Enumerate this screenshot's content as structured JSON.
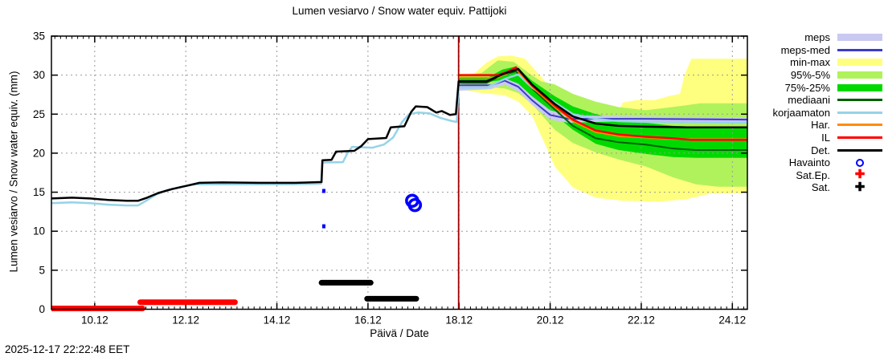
{
  "chart_data": {
    "type": "line",
    "title": "Lumen vesiarvo / Snow water equiv.  Pattijoki",
    "ylabel": "Lumen vesiarvo / Snow water equiv. (mm)",
    "xlabel": "Päivä / Date",
    "footer_timestamp": "2025-12-17 22:22:48 EET",
    "x_range": [
      9.05,
      24.33
    ],
    "y_range": [
      0,
      35
    ],
    "x_ticks": [
      {
        "value": 10,
        "label": "10.12"
      },
      {
        "value": 12,
        "label": "12.12"
      },
      {
        "value": 14,
        "label": "14.12"
      },
      {
        "value": 16,
        "label": "16.12"
      },
      {
        "value": 18,
        "label": "18.12"
      },
      {
        "value": 20,
        "label": "20.12"
      },
      {
        "value": 22,
        "label": "22.12"
      },
      {
        "value": 24,
        "label": "24.12"
      }
    ],
    "x_minor_step": 0.125,
    "y_ticks": [
      {
        "value": 0,
        "label": "0"
      },
      {
        "value": 5,
        "label": "5"
      },
      {
        "value": 10,
        "label": "10"
      },
      {
        "value": 15,
        "label": "15"
      },
      {
        "value": 20,
        "label": "20"
      },
      {
        "value": 25,
        "label": "25"
      },
      {
        "value": 30,
        "label": "30"
      },
      {
        "value": 35,
        "label": "35"
      }
    ],
    "colors": {
      "background": "#ffffff",
      "border": "#000000",
      "grid": "#9a9a9a",
      "text": "#000000"
    },
    "now_line": {
      "x": 17.99,
      "color": "#a00000"
    },
    "bands": [
      {
        "name": "min-max",
        "color": "#ffff7f",
        "upper": [
          [
            18.0,
            30.2
          ],
          [
            18.35,
            30.3
          ],
          [
            18.6,
            31.6
          ],
          [
            18.85,
            32.4
          ],
          [
            19.15,
            32.5
          ],
          [
            19.45,
            32.1
          ],
          [
            19.8,
            29.8
          ],
          [
            20.1,
            27.7
          ],
          [
            20.45,
            26.5
          ],
          [
            20.75,
            25.9
          ],
          [
            21.2,
            25.4
          ],
          [
            21.5,
            25.4
          ],
          [
            21.6,
            26.5
          ],
          [
            21.9,
            26.8
          ],
          [
            22.3,
            26.8
          ],
          [
            22.6,
            27.3
          ],
          [
            22.85,
            27.6
          ],
          [
            22.95,
            30.0
          ],
          [
            23.1,
            32.1
          ],
          [
            24.33,
            32.1
          ]
        ],
        "lower": [
          [
            18.0,
            28.2
          ],
          [
            18.5,
            27.7
          ],
          [
            19.0,
            27.4
          ],
          [
            19.3,
            26.6
          ],
          [
            19.6,
            24.8
          ],
          [
            19.9,
            21.0
          ],
          [
            20.1,
            18.3
          ],
          [
            20.5,
            15.6
          ],
          [
            21.0,
            14.3
          ],
          [
            21.6,
            13.9
          ],
          [
            22.4,
            13.8
          ],
          [
            23.0,
            14.1
          ],
          [
            23.5,
            14.8
          ],
          [
            24.33,
            14.9
          ]
        ]
      },
      {
        "name": "95%-5%",
        "color": "#b0f25c",
        "upper": [
          [
            18.0,
            29.9
          ],
          [
            18.5,
            30.3
          ],
          [
            18.85,
            31.9
          ],
          [
            19.2,
            31.7
          ],
          [
            19.5,
            30.4
          ],
          [
            19.8,
            29.2
          ],
          [
            20.1,
            28.8
          ],
          [
            20.5,
            27.6
          ],
          [
            21.0,
            26.6
          ],
          [
            21.5,
            25.9
          ],
          [
            22.1,
            25.5
          ],
          [
            22.8,
            26.0
          ],
          [
            23.3,
            26.4
          ],
          [
            24.33,
            26.4
          ]
        ],
        "lower": [
          [
            18.0,
            28.9
          ],
          [
            18.6,
            28.5
          ],
          [
            19.0,
            28.3
          ],
          [
            19.3,
            27.7
          ],
          [
            19.6,
            26.3
          ],
          [
            20.1,
            23.0
          ],
          [
            20.5,
            21.3
          ],
          [
            21.0,
            20.1
          ],
          [
            21.5,
            19.2
          ],
          [
            22.1,
            18.3
          ],
          [
            22.7,
            16.9
          ],
          [
            23.2,
            16.0
          ],
          [
            23.7,
            15.7
          ],
          [
            24.33,
            15.7
          ]
        ]
      },
      {
        "name": "75%-25%",
        "color": "#00d900",
        "upper": [
          [
            18.0,
            29.6
          ],
          [
            18.6,
            29.6
          ],
          [
            18.95,
            30.7
          ],
          [
            19.25,
            31.1
          ],
          [
            19.6,
            29.3
          ],
          [
            20.1,
            27.3
          ],
          [
            20.5,
            26.0
          ],
          [
            21.0,
            25.0
          ],
          [
            21.5,
            24.3
          ],
          [
            22.1,
            23.9
          ],
          [
            22.7,
            23.5
          ],
          [
            23.2,
            23.4
          ],
          [
            24.33,
            23.4
          ]
        ],
        "lower": [
          [
            18.0,
            29.1
          ],
          [
            18.6,
            29.1
          ],
          [
            19.0,
            29.4
          ],
          [
            19.3,
            28.4
          ],
          [
            19.6,
            26.9
          ],
          [
            20.1,
            24.9
          ],
          [
            20.5,
            23.0
          ],
          [
            21.0,
            21.2
          ],
          [
            21.5,
            20.4
          ],
          [
            22.1,
            19.9
          ],
          [
            22.7,
            19.5
          ],
          [
            23.2,
            19.4
          ],
          [
            24.33,
            19.4
          ]
        ]
      },
      {
        "name": "meps",
        "color": "#c9c9f2",
        "upper": [
          [
            18.0,
            28.6
          ],
          [
            18.7,
            28.8
          ],
          [
            19.0,
            29.6
          ],
          [
            19.3,
            28.9
          ],
          [
            19.6,
            27.3
          ],
          [
            20.0,
            25.5
          ],
          [
            20.4,
            24.9
          ],
          [
            21.0,
            24.8
          ],
          [
            22.0,
            24.7
          ],
          [
            24.33,
            24.6
          ]
        ],
        "lower": [
          [
            18.0,
            28.0
          ],
          [
            18.7,
            28.2
          ],
          [
            19.0,
            28.8
          ],
          [
            19.3,
            27.9
          ],
          [
            19.6,
            26.2
          ],
          [
            20.0,
            24.3
          ],
          [
            20.4,
            23.9
          ],
          [
            21.0,
            24.0
          ],
          [
            22.0,
            24.1
          ],
          [
            24.33,
            24.0
          ]
        ]
      }
    ],
    "lines": [
      {
        "name": "meps-med",
        "color": "#3b3bc8",
        "width": 2,
        "points": [
          [
            18.0,
            28.7
          ],
          [
            18.7,
            28.7
          ],
          [
            19.0,
            29.3
          ],
          [
            19.3,
            28.5
          ],
          [
            19.6,
            26.8
          ],
          [
            20.0,
            24.9
          ],
          [
            20.4,
            24.4
          ],
          [
            21.0,
            24.4
          ],
          [
            22.0,
            24.4
          ],
          [
            24.33,
            24.3
          ]
        ]
      },
      {
        "name": "mediaani",
        "color": "#005f00",
        "width": 2,
        "points": [
          [
            18.0,
            29.0
          ],
          [
            18.6,
            29.0
          ],
          [
            18.95,
            30.0
          ],
          [
            19.25,
            30.5
          ],
          [
            19.6,
            28.3
          ],
          [
            20.1,
            25.6
          ],
          [
            20.5,
            23.5
          ],
          [
            21.0,
            21.9
          ],
          [
            21.5,
            21.4
          ],
          [
            22.1,
            21.1
          ],
          [
            22.7,
            20.6
          ],
          [
            23.2,
            20.4
          ],
          [
            24.33,
            20.4
          ]
        ]
      },
      {
        "name": "korjaamaton",
        "color": "#96d3e8",
        "width": 2.5,
        "points": [
          [
            9.05,
            13.6
          ],
          [
            9.5,
            13.7
          ],
          [
            9.9,
            13.6
          ],
          [
            10.3,
            13.4
          ],
          [
            10.7,
            13.3
          ],
          [
            10.95,
            13.3
          ],
          [
            11.1,
            13.8
          ],
          [
            11.35,
            14.7
          ],
          [
            11.6,
            15.3
          ],
          [
            11.9,
            15.7
          ],
          [
            12.2,
            16.0
          ],
          [
            12.6,
            16.0
          ],
          [
            13.4,
            16.0
          ],
          [
            14.2,
            16.0
          ],
          [
            14.6,
            16.05
          ],
          [
            14.97,
            16.1
          ],
          [
            15.0,
            18.8
          ],
          [
            15.45,
            18.85
          ],
          [
            15.55,
            20.0
          ],
          [
            15.65,
            20.8
          ],
          [
            16.1,
            20.7
          ],
          [
            16.35,
            21.1
          ],
          [
            16.55,
            22.0
          ],
          [
            16.75,
            24.0
          ],
          [
            16.9,
            25.0
          ],
          [
            17.1,
            25.2
          ],
          [
            17.35,
            25.1
          ],
          [
            17.6,
            24.5
          ],
          [
            17.85,
            24.1
          ],
          [
            17.95,
            24.0
          ],
          [
            17.99,
            28.4
          ],
          [
            18.6,
            28.4
          ],
          [
            19.0,
            29.5
          ],
          [
            19.3,
            30.1
          ],
          [
            19.6,
            28.4
          ],
          [
            20.1,
            26.5
          ],
          [
            20.5,
            25.0
          ],
          [
            21.0,
            24.4
          ],
          [
            21.5,
            24.1
          ],
          [
            22.1,
            24.0
          ],
          [
            24.33,
            23.9
          ]
        ]
      },
      {
        "name": "Har.",
        "color": "#ff8c00",
        "width": 2,
        "points": [
          [
            18.0,
            29.7
          ],
          [
            18.85,
            29.7
          ],
          [
            19.05,
            30.2
          ],
          [
            19.25,
            30.8
          ],
          [
            19.6,
            28.5
          ],
          [
            20.1,
            25.9
          ],
          [
            20.5,
            24.1
          ],
          [
            21.0,
            22.7
          ],
          [
            21.5,
            22.2
          ],
          [
            22.1,
            22.0
          ],
          [
            22.7,
            21.8
          ],
          [
            24.33,
            21.8
          ]
        ]
      },
      {
        "name": "IL",
        "color": "#ff0000",
        "width": 2.5,
        "points": [
          [
            18.0,
            30.0
          ],
          [
            18.85,
            30.0
          ],
          [
            19.05,
            30.4
          ],
          [
            19.25,
            31.0
          ],
          [
            19.6,
            28.7
          ],
          [
            20.1,
            26.1
          ],
          [
            20.5,
            24.3
          ],
          [
            21.0,
            22.9
          ],
          [
            21.5,
            22.4
          ],
          [
            22.1,
            22.1
          ],
          [
            22.7,
            21.9
          ],
          [
            23.1,
            21.7
          ],
          [
            24.33,
            21.7
          ]
        ]
      },
      {
        "name": "Det.",
        "color": "#000000",
        "width": 2.5,
        "points": [
          [
            9.05,
            14.2
          ],
          [
            9.5,
            14.3
          ],
          [
            9.9,
            14.2
          ],
          [
            10.3,
            14.0
          ],
          [
            10.7,
            13.9
          ],
          [
            10.95,
            13.9
          ],
          [
            11.15,
            14.3
          ],
          [
            11.4,
            14.9
          ],
          [
            11.7,
            15.4
          ],
          [
            12.0,
            15.8
          ],
          [
            12.3,
            16.2
          ],
          [
            12.8,
            16.25
          ],
          [
            13.6,
            16.2
          ],
          [
            14.4,
            16.2
          ],
          [
            14.98,
            16.3
          ],
          [
            15.0,
            19.1
          ],
          [
            15.2,
            19.15
          ],
          [
            15.3,
            20.2
          ],
          [
            15.7,
            20.3
          ],
          [
            15.85,
            20.9
          ],
          [
            16.0,
            21.8
          ],
          [
            16.4,
            21.95
          ],
          [
            16.5,
            23.3
          ],
          [
            16.8,
            23.45
          ],
          [
            16.95,
            25.3
          ],
          [
            17.05,
            26.0
          ],
          [
            17.3,
            25.9
          ],
          [
            17.5,
            25.2
          ],
          [
            17.62,
            25.4
          ],
          [
            17.8,
            24.9
          ],
          [
            17.93,
            25.0
          ],
          [
            17.99,
            29.2
          ],
          [
            18.6,
            29.2
          ],
          [
            18.95,
            30.1
          ],
          [
            19.3,
            30.8
          ],
          [
            19.6,
            28.8
          ],
          [
            20.1,
            26.3
          ],
          [
            20.5,
            24.7
          ],
          [
            21.0,
            23.8
          ],
          [
            21.5,
            23.5
          ],
          [
            22.1,
            23.4
          ],
          [
            23.0,
            23.3
          ],
          [
            24.33,
            23.3
          ]
        ]
      }
    ],
    "markers": [
      {
        "name": "Havainto",
        "type": "rings",
        "color": "#0000ff",
        "points": [
          {
            "x": 15.03,
            "y": 15.16,
            "size": "small"
          },
          {
            "x": 15.03,
            "y": 10.63,
            "size": "small"
          },
          {
            "x": 16.97,
            "y": 13.9,
            "size": "large"
          },
          {
            "x": 17.03,
            "y": 13.35,
            "size": "large"
          }
        ]
      },
      {
        "name": "Sat.Ep.",
        "type": "runs",
        "color": "#ff0000",
        "width": 7,
        "runs": [
          {
            "from": 9.06,
            "to": 11.05,
            "value": 0.1
          },
          {
            "from": 11.0,
            "to": 13.08,
            "value": 0.9
          }
        ]
      },
      {
        "name": "Sat.",
        "type": "runs",
        "color": "#000000",
        "width": 7,
        "runs": [
          {
            "from": 14.98,
            "to": 16.06,
            "value": 3.4
          },
          {
            "from": 15.98,
            "to": 17.06,
            "value": 1.35
          }
        ]
      }
    ],
    "legend": [
      {
        "label": "meps",
        "swatch": "band",
        "color": "#c9c9f2"
      },
      {
        "label": "meps-med",
        "swatch": "line",
        "color": "#3b3bc8"
      },
      {
        "label": "min-max",
        "swatch": "band",
        "color": "#ffff7f"
      },
      {
        "label": "95%-5%",
        "swatch": "band",
        "color": "#b0f25c"
      },
      {
        "label": "75%-25%",
        "swatch": "band",
        "color": "#00d900"
      },
      {
        "label": "mediaani",
        "swatch": "line",
        "color": "#005f00"
      },
      {
        "label": "korjaamaton",
        "swatch": "line",
        "color": "#96d3e8"
      },
      {
        "label": "Har.",
        "swatch": "line",
        "color": "#ff8c00"
      },
      {
        "label": "IL",
        "swatch": "line",
        "color": "#ff0000"
      },
      {
        "label": "Det.",
        "swatch": "line",
        "color": "#000000"
      },
      {
        "label": "Havainto",
        "swatch": "ring",
        "color": "#0000ff"
      },
      {
        "label": "Sat.Ep.",
        "swatch": "plus",
        "color": "#ff0000"
      },
      {
        "label": "Sat.",
        "swatch": "plus",
        "color": "#000000"
      }
    ]
  }
}
